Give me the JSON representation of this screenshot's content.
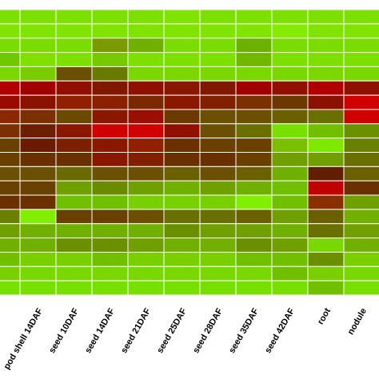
{
  "chart_data": {
    "type": "heatmap",
    "categories": [
      null,
      "pod shell 14DAF",
      "seed 10DAF",
      "seed 14DAF",
      "seed 21DAF",
      "seed 25DAF",
      "seed 28DAF",
      "seed 35DAF",
      "seed 42DAF",
      "root",
      "nodule"
    ],
    "colors": [
      [
        "#7ee000",
        "#7ee000",
        "#7ee000",
        "#7ee000",
        "#7ee000",
        "#80e400",
        "#7ee000",
        "#7ee000",
        "#7ee000",
        "#7ee000",
        "#7ee000"
      ],
      [
        "#7ee400",
        "#7ee400",
        "#7ee400",
        "#7ee400",
        "#7ee400",
        "#7ee400",
        "#7ee400",
        "#7ee400",
        "#84ec00",
        "#7ee400",
        "#7ee400"
      ],
      [
        "#7adc00",
        "#7adc00",
        "#7adc00",
        "#7a9a00",
        "#70b000",
        "#7adc00",
        "#7adc00",
        "#6cb000",
        "#7adc00",
        "#7adc00",
        "#7adc00"
      ],
      [
        "#70c800",
        "#80e000",
        "#7ee000",
        "#78c800",
        "#7ee000",
        "#7ee000",
        "#7ee000",
        "#70b800",
        "#7ee000",
        "#7ee000",
        "#7ee000"
      ],
      [
        "#7ad800",
        "#7acc00",
        "#6a5000",
        "#6a7a00",
        "#7ad800",
        "#7ad800",
        "#7ad800",
        "#7ad800",
        "#7ad800",
        "#7ad800",
        "#7ad800"
      ],
      [
        "#b00000",
        "#a00000",
        "#901000",
        "#801800",
        "#901000",
        "#8a1800",
        "#801800",
        "#a00000",
        "#901000",
        "#b00000",
        "#901000"
      ],
      [
        "#9a0a00",
        "#8a1000",
        "#902000",
        "#8a2000",
        "#7a2800",
        "#8a1800",
        "#802000",
        "#7a3000",
        "#6a3800",
        "#8a1000",
        "#d00000"
      ],
      [
        "#8a2800",
        "#7a3000",
        "#6a4a00",
        "#8a1800",
        "#9a1000",
        "#6a3a00",
        "#6a5000",
        "#6a5000",
        "#6a6000",
        "#6a7000",
        "#d00000"
      ],
      [
        "#7a3000",
        "#6a2000",
        "#8a1800",
        "#d00000",
        "#d00000",
        "#901000",
        "#6a5000",
        "#6a7000",
        "#78e000",
        "#70c000",
        "#6a9000"
      ],
      [
        "#6a4000",
        "#6a1a00",
        "#7a2000",
        "#8a1800",
        "#902000",
        "#6a3000",
        "#6a4000",
        "#6a4000",
        "#78c000",
        "#80e800",
        "#6a8000"
      ],
      [
        "#6a4000",
        "#6a3000",
        "#6a3000",
        "#8a1800",
        "#802000",
        "#6a3000",
        "#6a3000",
        "#6a4000",
        "#70a000",
        "#70a000",
        "#6a7000"
      ],
      [
        "#6a5000",
        "#6a5000",
        "#6a6a00",
        "#6a5000",
        "#6a5000",
        "#6a6000",
        "#6a5000",
        "#6a6000",
        "#70b000",
        "#602000",
        "#6a6000"
      ],
      [
        "#6a4000",
        "#6a4000",
        "#70a000",
        "#6a8a00",
        "#70a000",
        "#70b000",
        "#70a000",
        "#70b000",
        "#70c000",
        "#c00000",
        "#6a3000"
      ],
      [
        "#6a3000",
        "#6a3000",
        "#70c000",
        "#70c000",
        "#78d000",
        "#78d000",
        "#78d000",
        "#80f000",
        "#70c000",
        "#8a3000",
        "#70a000"
      ],
      [
        "#6a8000",
        "#80f000",
        "#6a4000",
        "#6a4000",
        "#6a5000",
        "#6a7000",
        "#6a7000",
        "#6a6000",
        "#70a000",
        "#6a6000",
        "#70b000"
      ],
      [
        "#70a000",
        "#70b000",
        "#70b000",
        "#70b000",
        "#70b000",
        "#6a9000",
        "#70a000",
        "#70a000",
        "#70b000",
        "#6a7000",
        "#70a000"
      ],
      [
        "#70b000",
        "#70b000",
        "#6a9000",
        "#6a9000",
        "#70a000",
        "#70b000",
        "#70b000",
        "#6a9000",
        "#70a000",
        "#78d800",
        "#70b000"
      ],
      [
        "#70c000",
        "#78d000",
        "#78d000",
        "#70c000",
        "#78d000",
        "#78d000",
        "#78d000",
        "#70c000",
        "#70c000",
        "#6a9000",
        "#78d000"
      ],
      [
        "#78d000",
        "#78d800",
        "#78d800",
        "#78d800",
        "#78d800",
        "#78d800",
        "#78d800",
        "#78d800",
        "#70c000",
        "#78d000",
        "#78d800"
      ],
      [
        "#78e000",
        "#78e000",
        "#78e000",
        "#78e000",
        "#78e000",
        "#78e000",
        "#78e000",
        "#78e000",
        "#78e000",
        "#70c000",
        "#78e000"
      ]
    ]
  }
}
